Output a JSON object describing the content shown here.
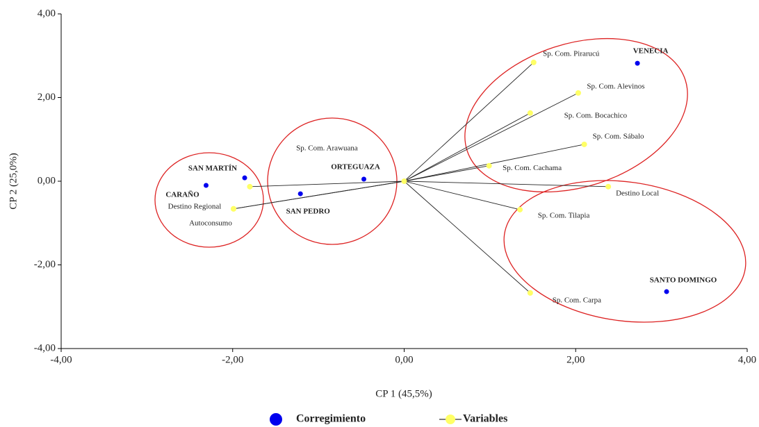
{
  "chart_data": {
    "type": "scatter",
    "x_label": "CP 1 (45,5%)",
    "y_label": "CP 2 (25,0%)",
    "xlim": [
      -4,
      4
    ],
    "ylim": [
      -4,
      4
    ],
    "xticks": [
      {
        "value": -4,
        "label": "-4,00"
      },
      {
        "value": -2,
        "label": "-2,00"
      },
      {
        "value": 0,
        "label": "0,00"
      },
      {
        "value": 2,
        "label": "2,00"
      },
      {
        "value": 4,
        "label": "4,00"
      }
    ],
    "yticks": [
      {
        "value": -4,
        "label": "-4,00"
      },
      {
        "value": -2,
        "label": "-2,00"
      },
      {
        "value": 0,
        "label": "0,00"
      },
      {
        "value": 2,
        "label": "2,00"
      },
      {
        "value": 4,
        "label": "4,00"
      }
    ],
    "series": [
      {
        "name": "Corregimiento",
        "color": "#0000ee",
        "labels": [
          "VENECIA",
          "SANTO DOMINGO",
          "ORTEGUAZA",
          "SAN PEDRO",
          "SAN MARTÍN",
          "CARAÑO"
        ],
        "x": [
          2.72,
          3.06,
          -0.47,
          -1.21,
          -1.86,
          -2.31
        ],
        "values": [
          2.82,
          -2.64,
          0.05,
          -0.3,
          0.08,
          -0.1
        ]
      },
      {
        "name": "Variables",
        "color": "#ffff66",
        "labels": [
          "Sp. Com. Pirarucú",
          "Sp. Com. Alevinos",
          "Sp. Com. Bocachico",
          "Sp. Com. Sábalo",
          "Sp. Com. Cachama",
          "Destino Local",
          "Sp. Com. Tilapia",
          "Sp. Com. Carpa",
          "Sp. Com. Arawuana",
          "Destino Regional",
          "Autoconsumo"
        ],
        "x": [
          1.51,
          2.03,
          1.47,
          2.1,
          0.99,
          2.38,
          1.35,
          1.47,
          -1.8,
          -1.99,
          -1.99
        ],
        "values": [
          2.84,
          2.11,
          1.63,
          0.88,
          0.37,
          -0.13,
          -0.68,
          -2.67,
          -0.13,
          -0.66,
          -0.66
        ]
      }
    ]
  }
}
